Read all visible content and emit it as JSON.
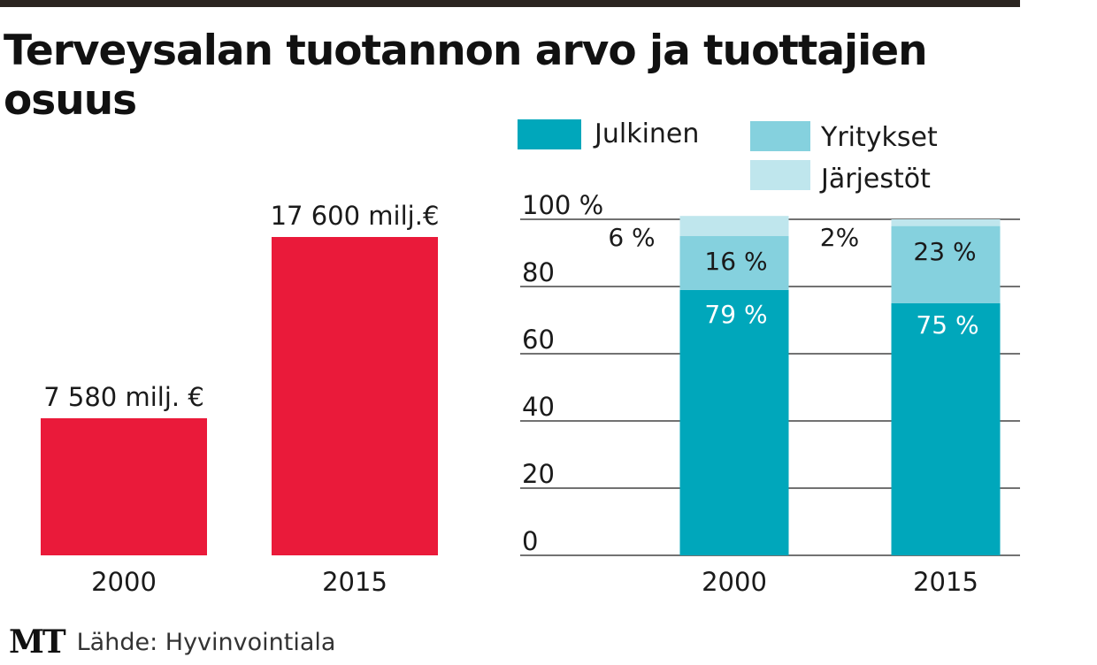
{
  "title": "Terveysalan tuotannon arvo ja tuottajien osuus",
  "source": "Lähde: Hyvinvointiala",
  "logo": "MT",
  "colors": {
    "red": "#ea1a3a",
    "julkinen": "#00a7bb",
    "yritykset": "#85d1de",
    "jarjestot": "#bfe6ed",
    "grid": "#444444"
  },
  "chart_data": [
    {
      "type": "bar",
      "title": "Terveysalan tuotannon arvo",
      "categories": [
        "2000",
        "2015"
      ],
      "values": [
        7580,
        17600
      ],
      "value_labels": [
        "7 580 milj. €",
        "17 600 milj.€"
      ],
      "unit": "milj. €",
      "ylim": [
        0,
        18500
      ]
    },
    {
      "type": "bar",
      "stacked": true,
      "title": "Tuottajien osuus",
      "categories": [
        "2000",
        "2015"
      ],
      "series": [
        {
          "name": "Julkinen",
          "values": [
            79,
            75
          ],
          "labels": [
            "79 %",
            "75 %"
          ]
        },
        {
          "name": "Yritykset",
          "values": [
            16,
            23
          ],
          "labels": [
            "16 %",
            "23 %"
          ]
        },
        {
          "name": "Järjestöt",
          "values": [
            6,
            2
          ],
          "labels": [
            "6 %",
            "2%"
          ]
        }
      ],
      "yticks": [
        "0",
        "20",
        "40",
        "60",
        "80",
        "100 %"
      ],
      "ylim": [
        0,
        100
      ],
      "legend": [
        "Julkinen",
        "Yritykset",
        "Järjestöt"
      ]
    }
  ]
}
